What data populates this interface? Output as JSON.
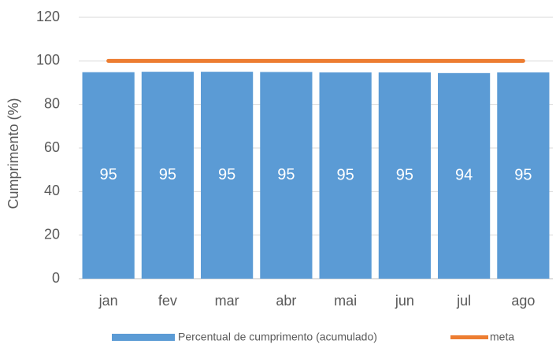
{
  "chart_data": {
    "type": "bar",
    "y_label": "Cumprimento (%)",
    "categories": [
      "jan",
      "fev",
      "mar",
      "abr",
      "mai",
      "jun",
      "jul",
      "ago"
    ],
    "series": [
      {
        "name": "Percentual de cumprimento (acumulado)",
        "type": "bar",
        "color": "#5b9bd5",
        "values": [
          94.8,
          95,
          95,
          94.9,
          94.7,
          94.7,
          94.4,
          94.7
        ],
        "value_labels": [
          "95",
          "95",
          "95",
          "95",
          "95",
          "95",
          "94",
          "95"
        ]
      },
      {
        "name": "meta",
        "type": "line",
        "color": "#ed7d31",
        "values": [
          100,
          100,
          100,
          100,
          100,
          100,
          100,
          100
        ]
      }
    ],
    "ylim": [
      0,
      120
    ],
    "yticks": [
      0,
      20,
      40,
      60,
      80,
      100,
      120
    ],
    "grid": true,
    "legend": "bottom"
  }
}
